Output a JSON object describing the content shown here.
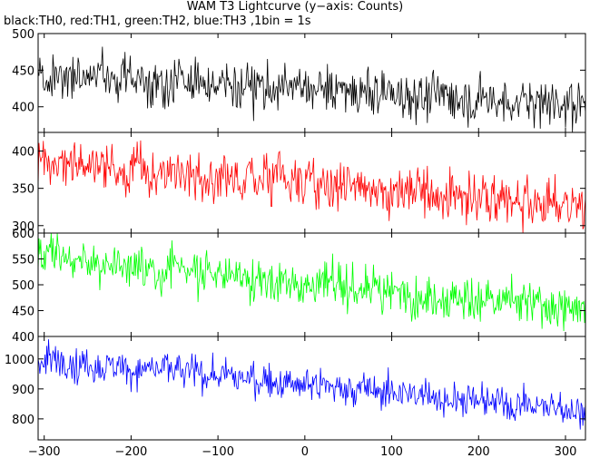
{
  "title": "WAM T3 Lightcurve (y−axis: Counts)",
  "subtitle": "black:TH0, red:TH1, green:TH2, blue:TH3 ,1bin = 1s",
  "chart_data": {
    "type": "line",
    "x_ticks": [
      -300,
      -200,
      -100,
      0,
      100,
      200,
      300
    ],
    "xlim": [
      -307,
      323
    ],
    "x_generated": "x = -307 .. 323, 1 s bins",
    "panels": [
      {
        "series": "TH0",
        "color": "#000000",
        "ylim": [
          365,
          500
        ],
        "yticks": [
          400,
          450,
          500
        ],
        "trend": {
          "start": 444,
          "end": 403,
          "noise": 32
        }
      },
      {
        "series": "TH1",
        "color": "#ff0000",
        "ylim": [
          290,
          425
        ],
        "yticks": [
          300,
          350,
          400
        ],
        "trend": {
          "start": 386,
          "end": 326,
          "noise": 32
        }
      },
      {
        "series": "TH2",
        "color": "#00ff00",
        "ylim": [
          400,
          600
        ],
        "yticks": [
          400,
          450,
          500,
          550,
          600
        ],
        "trend": {
          "start": 555,
          "end": 450,
          "noise": 40
        }
      },
      {
        "series": "TH3",
        "color": "#0000ff",
        "ylim": [
          730,
          1075
        ],
        "yticks": [
          800,
          900,
          1000
        ],
        "trend": {
          "start": 1000,
          "end": 828,
          "noise": 58
        }
      }
    ]
  }
}
